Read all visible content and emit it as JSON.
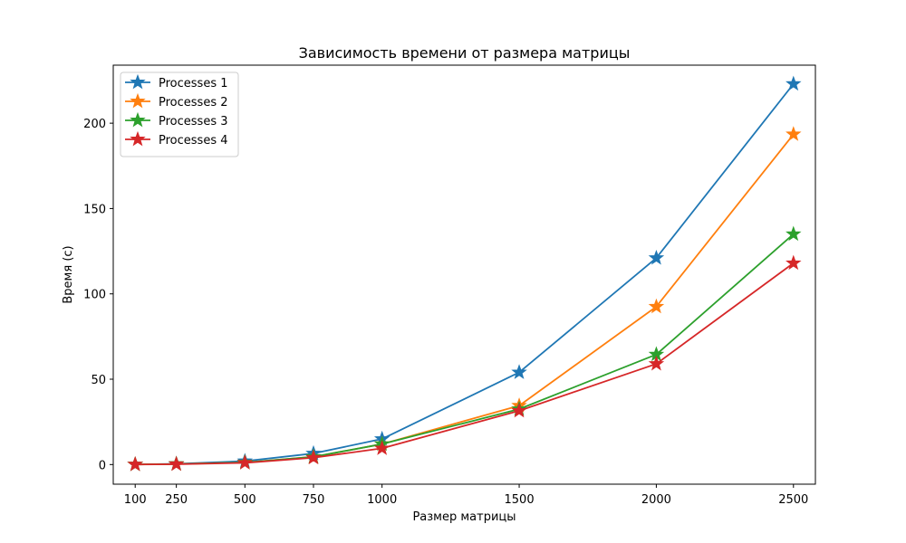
{
  "chart_data": {
    "type": "line",
    "title": "Зависимость времени от размера матрицы",
    "xlabel": "Размер матрицы",
    "ylabel": "Время (с)",
    "x": [
      100,
      250,
      500,
      750,
      1000,
      1500,
      2000,
      2500
    ],
    "x_tick_labels": [
      "100",
      "250",
      "500",
      "750",
      "1000",
      "1500",
      "2000",
      "2500"
    ],
    "y_ticks": [
      0,
      50,
      100,
      150,
      200
    ],
    "y_tick_labels": [
      "0",
      "50",
      "100",
      "150",
      "200"
    ],
    "xlim": [
      20,
      2580
    ],
    "ylim": [
      -11.5,
      234
    ],
    "marker": "star",
    "legend_position": "upper-left",
    "grid": false,
    "series": [
      {
        "name": "Processes 1",
        "color": "#1f77b4",
        "values": [
          0.05,
          0.4,
          2.0,
          6.5,
          15.0,
          54.0,
          121.0,
          223.0
        ]
      },
      {
        "name": "Processes 2",
        "color": "#ff7f0e",
        "values": [
          0.05,
          0.3,
          1.2,
          4.5,
          12.0,
          34.5,
          92.5,
          193.5
        ]
      },
      {
        "name": "Processes 3",
        "color": "#2ca02c",
        "values": [
          0.05,
          0.3,
          1.2,
          4.5,
          12.0,
          32.5,
          64.5,
          135.0
        ]
      },
      {
        "name": "Processes 4",
        "color": "#d62728",
        "values": [
          0.05,
          0.2,
          1.0,
          4.0,
          9.5,
          31.5,
          59.0,
          118.0
        ]
      }
    ]
  }
}
